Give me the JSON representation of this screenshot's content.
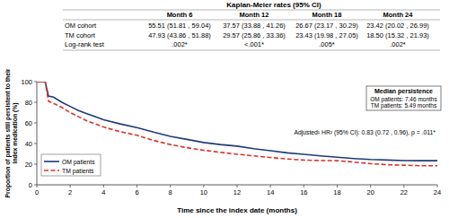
{
  "chart_data": {
    "type": "line",
    "table": {
      "title": "Kaplan-Meier rates (95% CI)",
      "columns": [
        "Month 6",
        "Month 12",
        "Month 18",
        "Month 24"
      ],
      "rows": [
        {
          "label": "OM cohort",
          "cells": [
            "55.51 (51.81 , 59.04)",
            "37.57 (33.88 , 41.26)",
            "26.67 (23.17 , 30.29)",
            "23.42 (20.02 , 26.99)"
          ]
        },
        {
          "label": "TM cohort",
          "cells": [
            "47.93 (43.86 , 51.88)",
            "29.57 (25.86 , 33.36)",
            "23.43 (19.98 , 27.05)",
            "18.50 (15.32 , 21.93)"
          ]
        },
        {
          "label": "Log-rank test",
          "cells": [
            ".002*",
            "<.001*",
            ".005*",
            ".002*"
          ]
        }
      ]
    },
    "xlabel": "Time since the index date (months)",
    "ylabel": [
      "Proportion of patients still persistent to their",
      "index medication (%)"
    ],
    "x": [
      0,
      0.5,
      0.7,
      1,
      1.5,
      2,
      2.5,
      3,
      3.5,
      4,
      5,
      6,
      7,
      8,
      9,
      10,
      11,
      12,
      13,
      14,
      15,
      16,
      17,
      18,
      19,
      20,
      21,
      22,
      23,
      24
    ],
    "series": [
      {
        "name": "OM patients",
        "color": "#1f3a7a",
        "line_style": "solid",
        "values": [
          100,
          100,
          86,
          85,
          80,
          76,
          72,
          69,
          66,
          63,
          59,
          55.5,
          51,
          47,
          44,
          41,
          39,
          37.5,
          35,
          33,
          31,
          29.5,
          28,
          26.7,
          25.5,
          24.5,
          24,
          23.5,
          23.4,
          23.4
        ]
      },
      {
        "name": "TM patients",
        "color": "#e0302a",
        "line_style": "dashed",
        "values": [
          100,
          100,
          81,
          79,
          75,
          70,
          66,
          62,
          59,
          56,
          51.5,
          48,
          43,
          39,
          36,
          33.5,
          31.5,
          29.6,
          28,
          26.5,
          25,
          24,
          23.5,
          23.4,
          22,
          20.5,
          19.5,
          19,
          18.5,
          18.5
        ]
      }
    ],
    "xlim": [
      0,
      24
    ],
    "xticks": [
      0,
      2,
      4,
      6,
      8,
      10,
      12,
      14,
      16,
      18,
      20,
      22,
      24
    ],
    "ylim": [
      0,
      100
    ],
    "yticks": [
      0,
      20,
      40,
      60,
      80,
      100
    ],
    "legend": "lower left",
    "median_box": {
      "title": "Median persistence",
      "lines": [
        "OM patients: 7.46 months",
        "TM patients: 5.49 months"
      ]
    },
    "annotations": [
      "Adjusted¹ HR² (95% CI): 0.83 (0.72 , 0.96), p = .011*"
    ]
  }
}
